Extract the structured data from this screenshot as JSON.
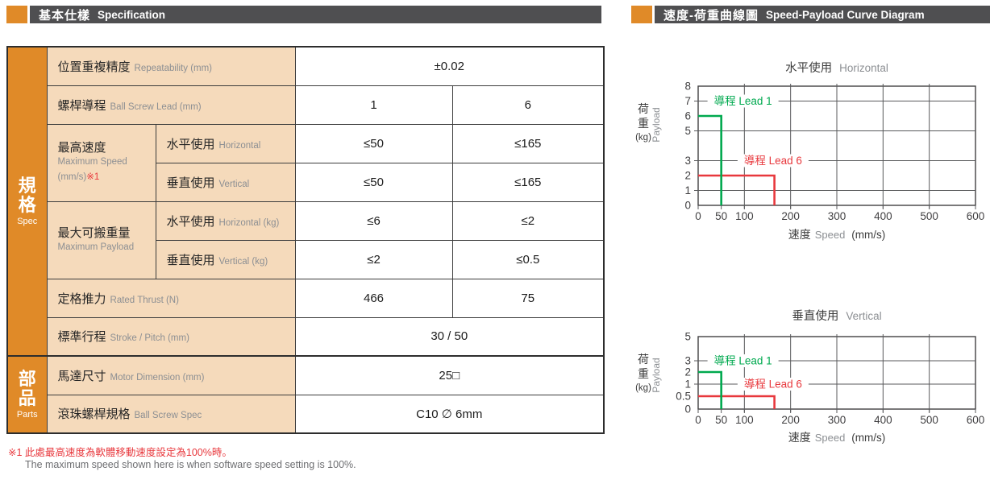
{
  "spec_section": {
    "header": {
      "title_cjk": "基本仕樣",
      "title_en": "Specification"
    },
    "side": {
      "spec_cjk": "規格",
      "spec_en": "Spec",
      "parts_cjk": "部品",
      "parts_en": "Parts"
    },
    "rows": {
      "repeatability": {
        "cjk": "位置重複精度",
        "en": "Repeatability (mm)",
        "value": "±0.02"
      },
      "ball_screw_lead": {
        "cjk": "螺桿導程",
        "en": "Ball Screw Lead (mm)",
        "v1": "1",
        "v2": "6"
      },
      "max_speed": {
        "cjk": "最高速度",
        "en": "Maximum Speed",
        "unit": "(mm/s)",
        "note": "※1",
        "horizontal": {
          "cjk": "水平使用",
          "en": "Horizontal",
          "v1": "≤50",
          "v2": "≤165"
        },
        "vertical": {
          "cjk": "垂直使用",
          "en": "Vertical",
          "v1": "≤50",
          "v2": "≤165"
        }
      },
      "max_payload": {
        "cjk": "最大可搬重量",
        "en": "Maximum Payload",
        "horizontal": {
          "cjk": "水平使用",
          "en": "Horizontal (kg)",
          "v1": "≤6",
          "v2": "≤2"
        },
        "vertical": {
          "cjk": "垂直使用",
          "en": "Vertical (kg)",
          "v1": "≤2",
          "v2": "≤0.5"
        }
      },
      "rated_thrust": {
        "cjk": "定格推力",
        "en": "Rated Thrust (N)",
        "v1": "466",
        "v2": "75"
      },
      "stroke": {
        "cjk": "標準行程",
        "en": "Stroke / Pitch (mm)",
        "value": "30 / 50"
      },
      "motor": {
        "cjk": "馬達尺寸",
        "en": "Motor Dimension (mm)",
        "value": "25□"
      },
      "ball_screw_spec": {
        "cjk": "滾珠螺桿規格",
        "en": "Ball Screw Spec",
        "value": "C10 ∅ 6mm"
      }
    },
    "footnote": {
      "line1": "※1 此處最高速度為軟體移動速度設定為100%時。",
      "line2": "The maximum speed shown here is when software speed setting is 100%."
    }
  },
  "curve_section": {
    "header": {
      "title_cjk": "速度-荷重曲線圖",
      "title_en": "Speed-Payload Curve Diagram"
    }
  },
  "chart_data": [
    {
      "type": "line",
      "title_cjk": "水平使用",
      "title_en": "Horizontal",
      "xlabel_cjk": "速度",
      "xlabel_en": "Speed",
      "xlabel_unit": "(mm/s)",
      "ylabel_cjk": "荷重",
      "ylabel_unit": "(kg)",
      "ylabel_en": "Payload",
      "xlim": [
        0,
        600
      ],
      "ylim": [
        0,
        8
      ],
      "xticks": [
        0,
        50,
        100,
        200,
        300,
        400,
        500,
        600
      ],
      "yticks": [
        8,
        7,
        6,
        5,
        3,
        2,
        1,
        0
      ],
      "xgrid": [
        100,
        200,
        300,
        400,
        500
      ],
      "ygrid": [
        7,
        5,
        3,
        1
      ],
      "grid": true,
      "legend_position": "inline",
      "series": [
        {
          "name": "導程 Lead 1",
          "color": "#00A94F",
          "payload_kg": 6,
          "max_speed_mms": 50,
          "points": [
            [
              0,
              6
            ],
            [
              50,
              6
            ],
            [
              50,
              0
            ]
          ],
          "label_x": 97,
          "label_y": 7
        },
        {
          "name": "導程 Lead 6",
          "color": "#E8383D",
          "payload_kg": 2,
          "max_speed_mms": 165,
          "points": [
            [
              0,
              2
            ],
            [
              165,
              2
            ],
            [
              165,
              0
            ]
          ],
          "label_x": 162,
          "label_y": 3
        }
      ]
    },
    {
      "type": "line",
      "title_cjk": "垂直使用",
      "title_en": "Vertical",
      "xlabel_cjk": "速度",
      "xlabel_en": "Speed",
      "xlabel_unit": "(mm/s)",
      "ylabel_cjk": "荷重",
      "ylabel_unit": "(kg)",
      "ylabel_en": "Payload",
      "xlim": [
        0,
        600
      ],
      "ylim": [
        0,
        5
      ],
      "xticks": [
        0,
        50,
        100,
        200,
        300,
        400,
        500,
        600
      ],
      "yticks": [
        5,
        3,
        2,
        1,
        0.5,
        0
      ],
      "xgrid": [
        100,
        200,
        300,
        400,
        500
      ],
      "ygrid": [
        3,
        1
      ],
      "grid": true,
      "legend_position": "inline",
      "series": [
        {
          "name": "導程 Lead 1",
          "color": "#00A94F",
          "payload_kg": 2,
          "max_speed_mms": 50,
          "points": [
            [
              0,
              2
            ],
            [
              50,
              2
            ],
            [
              50,
              0
            ]
          ],
          "label_x": 97,
          "label_y": 3
        },
        {
          "name": "導程 Lead 6",
          "color": "#E8383D",
          "payload_kg": 0.5,
          "max_speed_mms": 165,
          "points": [
            [
              0,
              0.5
            ],
            [
              165,
              0.5
            ],
            [
              165,
              0
            ]
          ],
          "label_x": 162,
          "label_y": 1
        }
      ]
    }
  ],
  "colors": {
    "accent_orange": "#E08A28",
    "header_gray": "#4F4F51",
    "label_bg": "#F5DABB",
    "red": "#E8383D",
    "green": "#00A94F",
    "grid": "#58595B",
    "text_dark": "#262626",
    "text_gray": "#8C8F93"
  }
}
